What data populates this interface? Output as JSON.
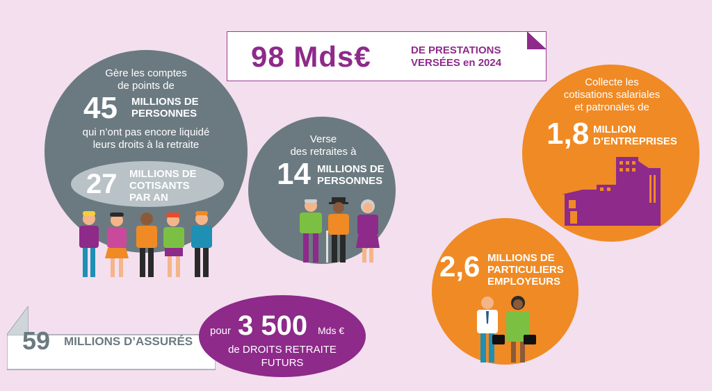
{
  "colors": {
    "background": "#f3dfee",
    "purple": "#8d2a8a",
    "grey": "#6b7a80",
    "orange": "#f08a24",
    "light_grey": "#b9c2c6"
  },
  "banner_top": {
    "value": "98 Mds€",
    "label_line1": "DE PRESTATIONS",
    "label_line2": "VERSÉES en 2024"
  },
  "circle_left": {
    "line1": "Gère les comptes",
    "line2": "de points de",
    "big_number": "45",
    "big_label_line1": "MILLIONS DE",
    "big_label_line2": "PERSONNES",
    "line3": "qui n’ont pas encore liquidé",
    "line4": "leurs droits à la retraite",
    "inner_number": "27",
    "inner_label_line1": "MILLIONS DE",
    "inner_label_line2": "COTISANTS",
    "inner_label_line3": "PAR AN"
  },
  "circle_middle": {
    "line1": "Verse",
    "line2": "des retraites à",
    "big_number": "14",
    "big_label_line1": "MILLIONS DE",
    "big_label_line2": "PERSONNES"
  },
  "circle_right_top": {
    "line1": "Collecte les",
    "line2": "cotisations salariales",
    "line3": "et patronales de",
    "big_number": "1,8",
    "big_label_line1": "MILLION",
    "big_label_line2": "D’ENTREPRISES"
  },
  "circle_right_bottom": {
    "big_number": "2,6",
    "big_label_line1": "MILLIONS DE",
    "big_label_line2": "PARTICULIERS",
    "big_label_line3": "EMPLOYEURS"
  },
  "banner_bottom": {
    "number": "59",
    "label": "MILLIONS D’ASSURÉS"
  },
  "oval_bottom": {
    "prefix": "pour",
    "number": "3 500",
    "unit": "Mds €",
    "line2": "de DROITS RETRAITE",
    "line3": "FUTURS"
  }
}
